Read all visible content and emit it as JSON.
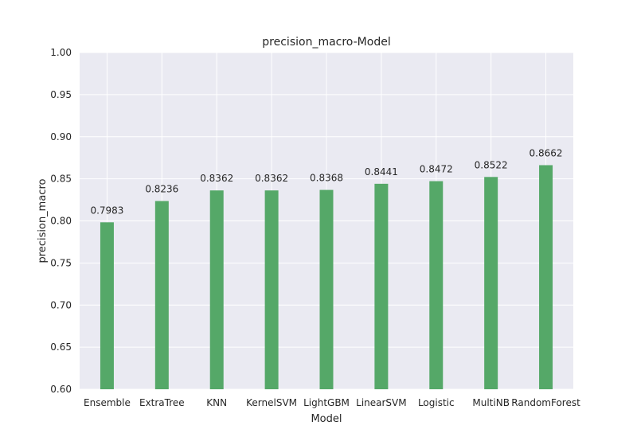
{
  "chart_data": {
    "type": "bar",
    "title": "precision_macro-Model",
    "xlabel": "Model",
    "ylabel": "precision_macro",
    "categories": [
      "Ensemble",
      "ExtraTree",
      "KNN",
      "KernelSVM",
      "LightGBM",
      "LinearSVM",
      "Logistic",
      "MultiNB",
      "RandomForest"
    ],
    "values": [
      0.7983,
      0.8236,
      0.8362,
      0.8362,
      0.8368,
      0.8441,
      0.8472,
      0.8522,
      0.8662
    ],
    "value_labels": [
      "0.7983",
      "0.8236",
      "0.8362",
      "0.8362",
      "0.8368",
      "0.8441",
      "0.8472",
      "0.8522",
      "0.8662"
    ],
    "ylim": [
      0.6,
      1.0
    ],
    "yticks": [
      0.6,
      0.65,
      0.7,
      0.75,
      0.8,
      0.85,
      0.9,
      0.95,
      1.0
    ],
    "ytick_labels": [
      "0.60",
      "0.65",
      "0.70",
      "0.75",
      "0.80",
      "0.85",
      "0.90",
      "0.95",
      "1.00"
    ],
    "grid": true,
    "colors": {
      "bar": "#55a868",
      "plot_background": "#eaeaf2",
      "grid": "#ffffff"
    }
  }
}
